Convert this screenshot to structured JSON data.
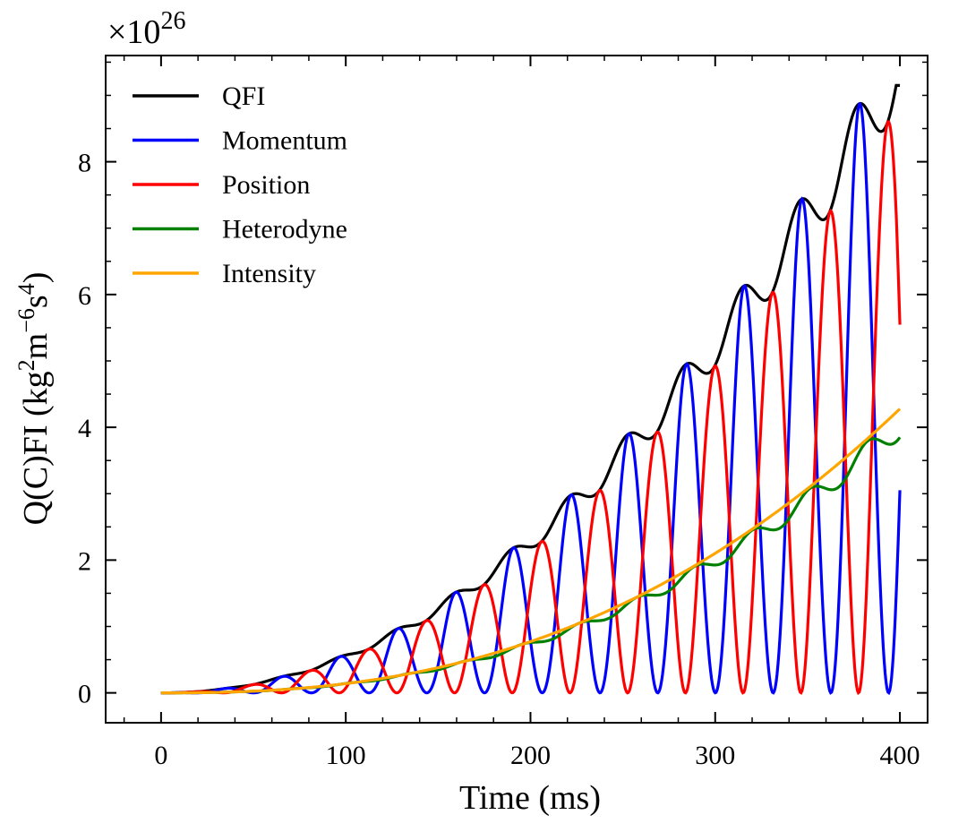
{
  "chart_data": {
    "type": "line",
    "xlabel": "Time (ms)",
    "ylabel": "Q(C)FI (kg²m⁻⁶s⁴)",
    "ylabel_parts": {
      "a": "Q(C)FI (kg",
      "b": "2",
      "c": "m",
      "d": "−6",
      "e": "s",
      "f": "4",
      "g": ")"
    },
    "y_multiplier": {
      "base": "×10",
      "exp": "26"
    },
    "xlim": [
      -30,
      415
    ],
    "ylim": [
      -0.45,
      9.6
    ],
    "xticks": [
      0,
      100,
      200,
      300,
      400
    ],
    "xtick_labels": [
      "0",
      "100",
      "200",
      "300",
      "400"
    ],
    "yticks": [
      0,
      2,
      4,
      6,
      8
    ],
    "ytick_labels": [
      "0",
      "2",
      "4",
      "6",
      "8"
    ],
    "grid": false,
    "legend_position": "top-left",
    "series": [
      {
        "name": "QFI",
        "color": "#000000",
        "x": [
          0,
          50,
          80,
          100,
          110,
          120,
          142,
          160,
          173,
          190,
          205,
          220,
          236,
          250,
          267,
          280,
          298,
          315,
          330,
          345,
          362,
          375,
          393,
          400
        ],
        "y": [
          0,
          0.15,
          0.36,
          0.6,
          0.72,
          0.8,
          1.18,
          1.42,
          1.76,
          2.0,
          2.45,
          2.75,
          3.27,
          3.7,
          4.17,
          4.6,
          5.22,
          5.9,
          6.38,
          6.9,
          7.62,
          8.1,
          9.0,
          9.1
        ]
      },
      {
        "name": "Momentum",
        "color": "#0000ff",
        "x": [
          0,
          97,
          128,
          159,
          190,
          221,
          252,
          284,
          315,
          346,
          377,
          400
        ],
        "y": [
          0,
          0.56,
          0.95,
          1.45,
          2.1,
          2.85,
          3.72,
          4.7,
          5.78,
          7.0,
          8.3,
          3.95
        ]
      },
      {
        "name": "Position",
        "color": "#ff0000",
        "x": [
          0,
          112,
          143,
          174,
          205,
          236,
          267,
          299,
          330,
          361,
          393,
          400
        ],
        "y": [
          0,
          0.73,
          1.18,
          1.76,
          2.45,
          3.27,
          4.17,
          5.22,
          6.38,
          7.62,
          9.0,
          5.15
        ]
      },
      {
        "name": "Heterodyne",
        "color": "#008000",
        "x": [
          0,
          100,
          200,
          300,
          400
        ],
        "y": [
          0,
          0.33,
          1.18,
          2.55,
          4.58
        ]
      },
      {
        "name": "Intensity",
        "color": "#ffa500",
        "x": [
          0,
          100,
          200,
          300,
          400
        ],
        "y": [
          0,
          0.34,
          1.2,
          2.62,
          4.68
        ]
      }
    ]
  }
}
